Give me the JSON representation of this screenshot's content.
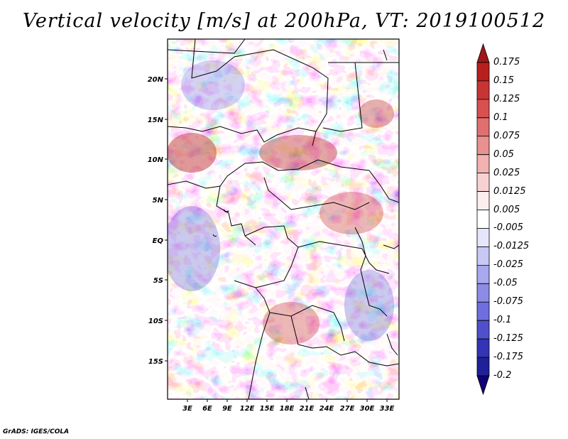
{
  "title": "Vertical velocity [m/s] at 200hPa, VT: 2019100512",
  "footer": "GrADS: IGES/COLA",
  "map": {
    "lat_ticks": [
      "20N",
      "15N",
      "10N",
      "5N",
      "EQ",
      "5S",
      "10S",
      "15S"
    ],
    "lon_ticks": [
      "3E",
      "6E",
      "9E",
      "12E",
      "15E",
      "18E",
      "21E",
      "24E",
      "27E",
      "30E",
      "33E"
    ]
  },
  "colorbar": {
    "labels": [
      "0.175",
      "0.15",
      "0.125",
      "0.1",
      "0.075",
      "0.05",
      "0.025",
      "0.0125",
      "0.005",
      "-0.005",
      "-0.0125",
      "-0.025",
      "-0.05",
      "-0.075",
      "-0.1",
      "-0.125",
      "-0.175",
      "-0.2"
    ],
    "colors": [
      "#a01818",
      "#b82020",
      "#c83434",
      "#d85050",
      "#e07070",
      "#e99090",
      "#f2b2b2",
      "#f8d2d2",
      "#fdeeee",
      "#ffffff",
      "#e6e6fa",
      "#c8c8f5",
      "#a8a8ee",
      "#8c8ce6",
      "#6e6ede",
      "#5050cc",
      "#3434b4",
      "#202098",
      "#100078"
    ]
  }
}
